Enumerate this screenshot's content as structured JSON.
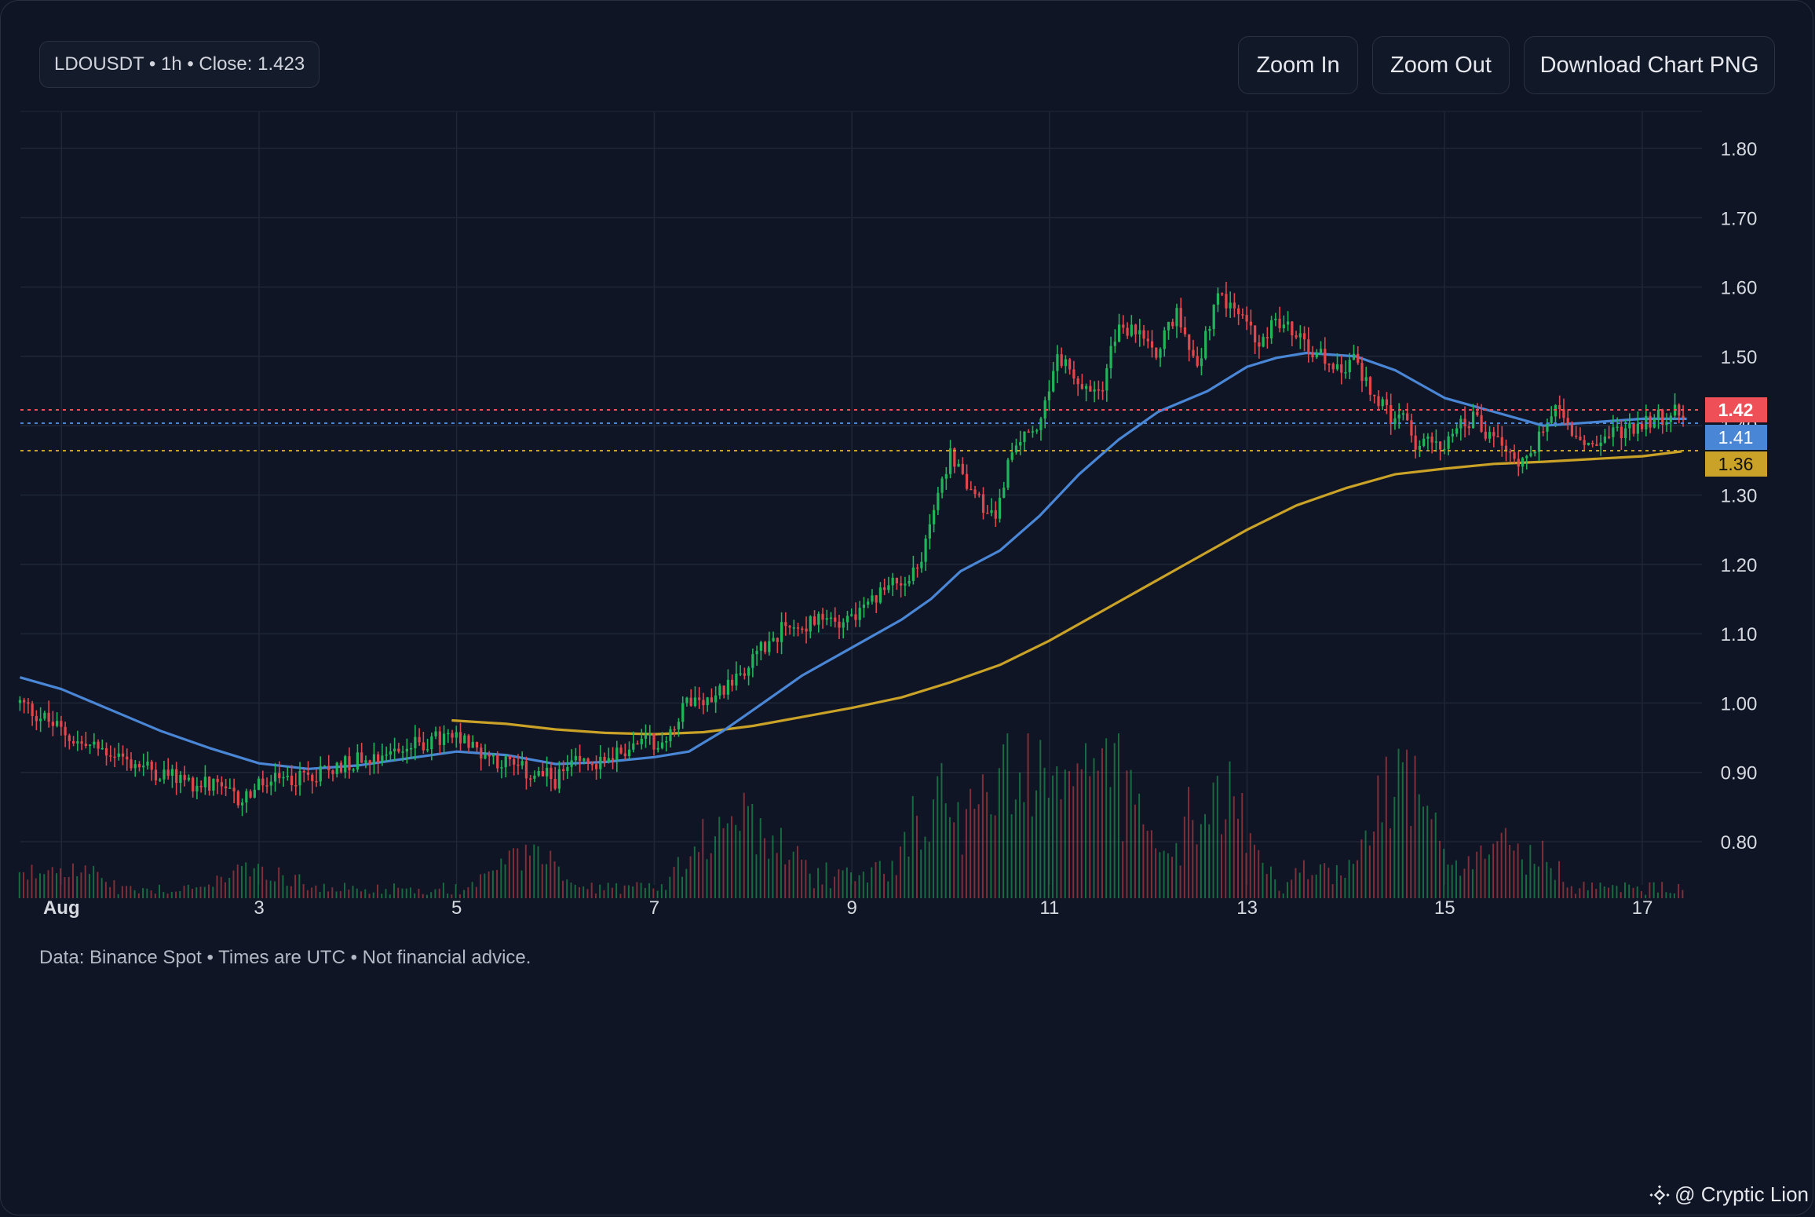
{
  "header": {
    "symbol_info": "LDOUSDT • 1h • Close: 1.423"
  },
  "toolbar": {
    "zoom_in_label": "Zoom In",
    "zoom_out_label": "Zoom Out",
    "download_label": "Download Chart PNG"
  },
  "footer": {
    "disclaimer": "Data: Binance Spot • Times are UTC • Not financial advice."
  },
  "credit": {
    "text": "@ Cryptic Lion",
    "icon": "binance-logo-icon"
  },
  "colors": {
    "background": "#0f1524",
    "grid": "#1f2636",
    "up": "#22b45a",
    "down": "#e0464b",
    "ma_fast": "#4a86d6",
    "ma_slow": "#c9a227",
    "last_price": "#ef4f56"
  },
  "chart_data": {
    "type": "candlestick",
    "title": "",
    "interval": "1h",
    "ylim": [
      0.74,
      1.85
    ],
    "y_ticks": [
      0.8,
      0.9,
      1.0,
      1.1,
      1.2,
      1.3,
      1.4,
      1.5,
      1.6,
      1.7,
      1.8
    ],
    "y_tick_labels": [
      "0.80",
      "0.90",
      "1.00",
      "1.10",
      "1.20",
      "1.30",
      "1.40",
      "1.50",
      "1.60",
      "1.70",
      "1.80"
    ],
    "x_ticks": [
      {
        "day": 1,
        "label": "Aug"
      },
      {
        "day": 3,
        "label": "3"
      },
      {
        "day": 5,
        "label": "5"
      },
      {
        "day": 7,
        "label": "7"
      },
      {
        "day": 9,
        "label": "9"
      },
      {
        "day": 11,
        "label": "11"
      },
      {
        "day": 13,
        "label": "13"
      },
      {
        "day": 15,
        "label": "15"
      },
      {
        "day": 17,
        "label": "17"
      }
    ],
    "xlim_days": [
      0.58,
      17.6
    ],
    "close_path": [
      [
        0.58,
        1.0
      ],
      [
        0.8,
        0.98
      ],
      [
        1.0,
        0.96
      ],
      [
        1.2,
        0.94
      ],
      [
        1.5,
        0.93
      ],
      [
        1.8,
        0.91
      ],
      [
        2.0,
        0.9
      ],
      [
        2.2,
        0.89
      ],
      [
        2.5,
        0.88
      ],
      [
        2.8,
        0.86
      ],
      [
        3.0,
        0.88
      ],
      [
        3.3,
        0.89
      ],
      [
        3.6,
        0.9
      ],
      [
        4.0,
        0.92
      ],
      [
        4.3,
        0.93
      ],
      [
        4.6,
        0.94
      ],
      [
        4.9,
        0.95
      ],
      [
        5.1,
        0.94
      ],
      [
        5.4,
        0.92
      ],
      [
        5.7,
        0.9
      ],
      [
        6.0,
        0.89
      ],
      [
        6.2,
        0.91
      ],
      [
        6.5,
        0.92
      ],
      [
        6.8,
        0.94
      ],
      [
        7.1,
        0.95
      ],
      [
        7.35,
        1.0
      ],
      [
        7.6,
        1.01
      ],
      [
        7.9,
        1.05
      ],
      [
        8.2,
        1.1
      ],
      [
        8.5,
        1.11
      ],
      [
        8.8,
        1.12
      ],
      [
        9.1,
        1.13
      ],
      [
        9.4,
        1.17
      ],
      [
        9.7,
        1.2
      ],
      [
        9.85,
        1.3
      ],
      [
        10.0,
        1.36
      ],
      [
        10.2,
        1.3
      ],
      [
        10.45,
        1.27
      ],
      [
        10.65,
        1.38
      ],
      [
        10.9,
        1.4
      ],
      [
        11.1,
        1.5
      ],
      [
        11.3,
        1.47
      ],
      [
        11.5,
        1.44
      ],
      [
        11.7,
        1.55
      ],
      [
        11.9,
        1.53
      ],
      [
        12.1,
        1.51
      ],
      [
        12.3,
        1.56
      ],
      [
        12.5,
        1.49
      ],
      [
        12.7,
        1.58
      ],
      [
        12.9,
        1.57
      ],
      [
        13.1,
        1.52
      ],
      [
        13.3,
        1.55
      ],
      [
        13.5,
        1.53
      ],
      [
        13.7,
        1.5
      ],
      [
        13.9,
        1.49
      ],
      [
        14.1,
        1.49
      ],
      [
        14.3,
        1.44
      ],
      [
        14.5,
        1.4
      ],
      [
        14.6,
        1.41
      ],
      [
        14.7,
        1.37
      ],
      [
        15.0,
        1.38
      ],
      [
        15.3,
        1.41
      ],
      [
        15.5,
        1.38
      ],
      [
        15.7,
        1.35
      ],
      [
        15.9,
        1.37
      ],
      [
        16.1,
        1.42
      ],
      [
        16.3,
        1.39
      ],
      [
        16.5,
        1.37
      ],
      [
        16.7,
        1.39
      ],
      [
        16.9,
        1.4
      ],
      [
        17.1,
        1.41
      ],
      [
        17.3,
        1.42
      ],
      [
        17.45,
        1.423
      ]
    ],
    "series": [
      {
        "name": "",
        "kind": "ma_fast",
        "points": [
          [
            0.58,
            1.037
          ],
          [
            1.0,
            1.02
          ],
          [
            1.5,
            0.99
          ],
          [
            2.0,
            0.96
          ],
          [
            2.5,
            0.935
          ],
          [
            3.0,
            0.913
          ],
          [
            3.5,
            0.905
          ],
          [
            4.0,
            0.91
          ],
          [
            4.5,
            0.92
          ],
          [
            5.0,
            0.93
          ],
          [
            5.5,
            0.925
          ],
          [
            6.0,
            0.912
          ],
          [
            6.5,
            0.915
          ],
          [
            7.0,
            0.922
          ],
          [
            7.35,
            0.93
          ],
          [
            7.7,
            0.96
          ],
          [
            8.1,
            1.0
          ],
          [
            8.5,
            1.04
          ],
          [
            9.0,
            1.08
          ],
          [
            9.5,
            1.12
          ],
          [
            9.8,
            1.15
          ],
          [
            10.1,
            1.19
          ],
          [
            10.5,
            1.22
          ],
          [
            10.9,
            1.27
          ],
          [
            11.3,
            1.33
          ],
          [
            11.7,
            1.38
          ],
          [
            12.1,
            1.42
          ],
          [
            12.6,
            1.45
          ],
          [
            13.0,
            1.485
          ],
          [
            13.3,
            1.498
          ],
          [
            13.6,
            1.505
          ],
          [
            14.1,
            1.5
          ],
          [
            14.5,
            1.48
          ],
          [
            15.0,
            1.44
          ],
          [
            15.5,
            1.42
          ],
          [
            16.0,
            1.4
          ],
          [
            16.5,
            1.405
          ],
          [
            17.0,
            1.41
          ],
          [
            17.45,
            1.41
          ]
        ]
      },
      {
        "name": "",
        "kind": "ma_slow",
        "points": [
          [
            4.95,
            0.975
          ],
          [
            5.5,
            0.97
          ],
          [
            6.0,
            0.962
          ],
          [
            6.5,
            0.957
          ],
          [
            7.0,
            0.955
          ],
          [
            7.5,
            0.958
          ],
          [
            8.0,
            0.967
          ],
          [
            8.5,
            0.98
          ],
          [
            9.0,
            0.993
          ],
          [
            9.5,
            1.008
          ],
          [
            10.0,
            1.03
          ],
          [
            10.5,
            1.055
          ],
          [
            11.0,
            1.09
          ],
          [
            11.5,
            1.13
          ],
          [
            12.0,
            1.17
          ],
          [
            12.5,
            1.21
          ],
          [
            13.0,
            1.25
          ],
          [
            13.5,
            1.285
          ],
          [
            14.0,
            1.31
          ],
          [
            14.5,
            1.33
          ],
          [
            15.0,
            1.338
          ],
          [
            15.5,
            1.345
          ],
          [
            16.0,
            1.348
          ],
          [
            16.5,
            1.352
          ],
          [
            17.0,
            1.356
          ],
          [
            17.4,
            1.363
          ]
        ]
      }
    ],
    "price_labels": [
      {
        "value": 1.42,
        "text": "1.42",
        "kind": "last_price"
      },
      {
        "value": 1.41,
        "text": "1.41",
        "kind": "ma_fast"
      },
      {
        "value": 1.36,
        "text": "1.36",
        "kind": "ma_slow"
      }
    ],
    "volume_spikes": [
      {
        "day": 1.0,
        "h": 0.25
      },
      {
        "day": 3.0,
        "h": 0.2
      },
      {
        "day": 5.7,
        "h": 0.35
      },
      {
        "day": 7.6,
        "h": 0.3
      },
      {
        "day": 8.0,
        "h": 0.45
      },
      {
        "day": 9.9,
        "h": 0.7
      },
      {
        "day": 10.6,
        "h": 0.9
      },
      {
        "day": 11.1,
        "h": 0.75
      },
      {
        "day": 11.65,
        "h": 0.95
      },
      {
        "day": 12.7,
        "h": 0.92
      },
      {
        "day": 14.55,
        "h": 1.0
      },
      {
        "day": 15.6,
        "h": 0.35
      }
    ]
  }
}
